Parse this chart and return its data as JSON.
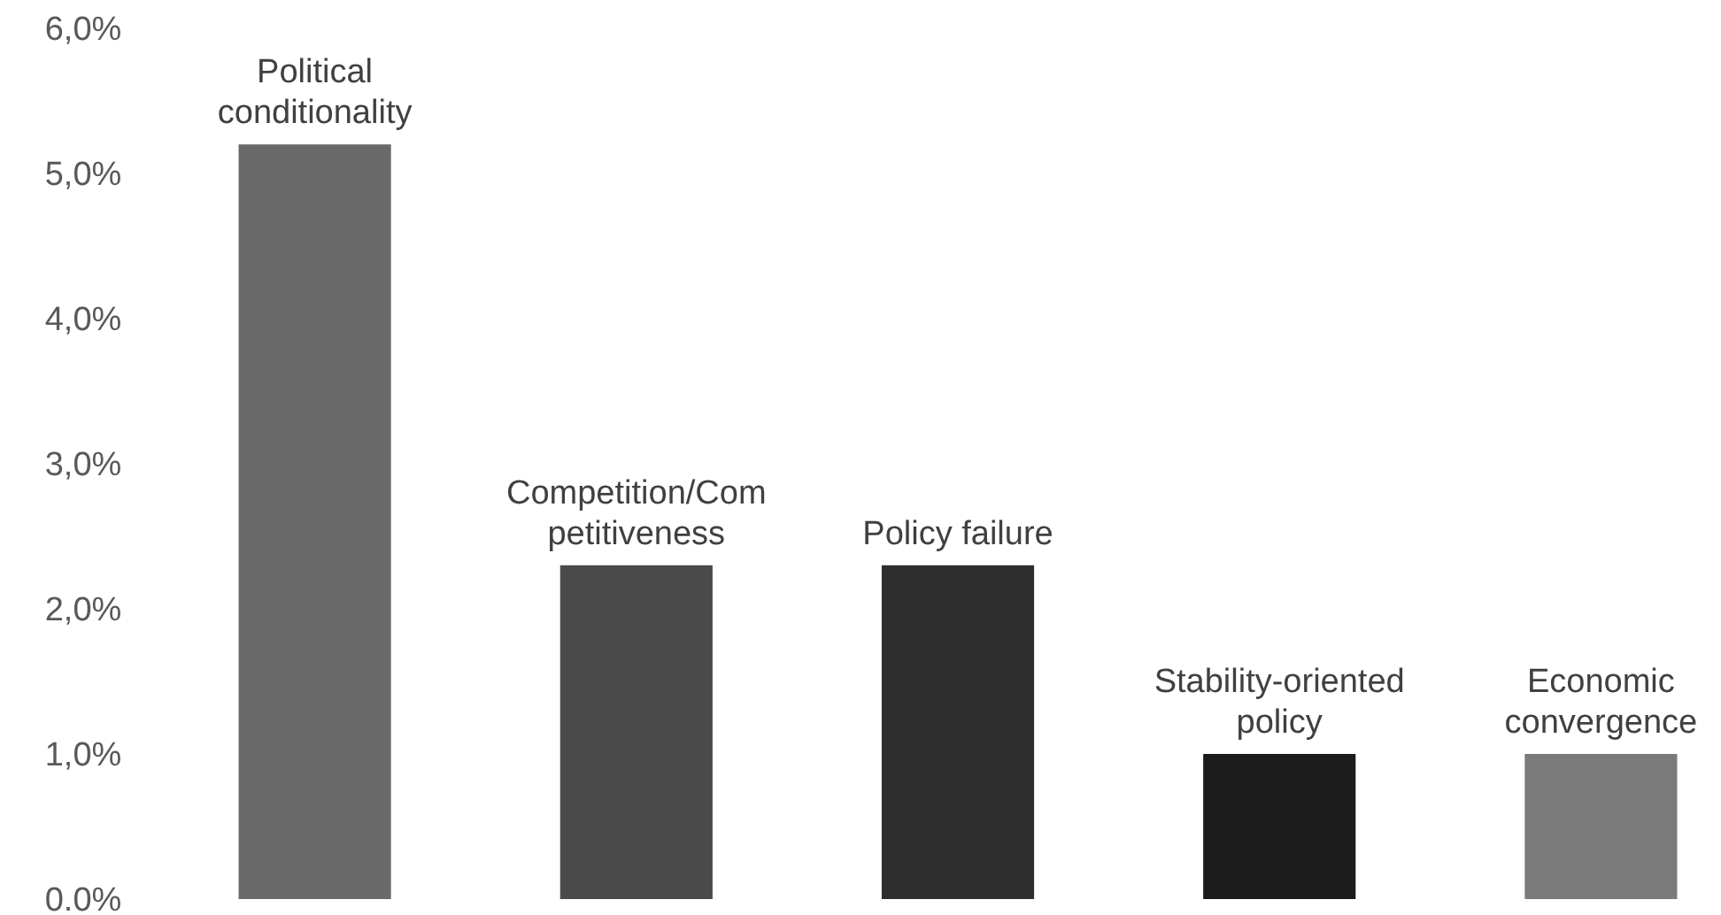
{
  "chart_data": {
    "type": "bar",
    "categories": [
      "Political\nconditionality",
      "Competition/Com\npetitiveness",
      "Policy failure",
      "Stability-oriented\npolicy",
      "Economic\nconvergence"
    ],
    "values": [
      5.2,
      2.3,
      2.3,
      1.0,
      1.0
    ],
    "colors": [
      "#6a6a6a",
      "#4a4a4a",
      "#2e2e2e",
      "#1c1c1c",
      "#7a7a7a"
    ],
    "ylim": [
      0,
      6
    ],
    "yticks": [
      {
        "value": 0,
        "label": "0.0%"
      },
      {
        "value": 1,
        "label": "1,0%"
      },
      {
        "value": 2,
        "label": "2,0%"
      },
      {
        "value": 3,
        "label": "3,0%"
      },
      {
        "value": 4,
        "label": "4,0%"
      },
      {
        "value": 5,
        "label": "5,0%"
      },
      {
        "value": 6,
        "label": "6,0%"
      }
    ],
    "grid": false
  }
}
